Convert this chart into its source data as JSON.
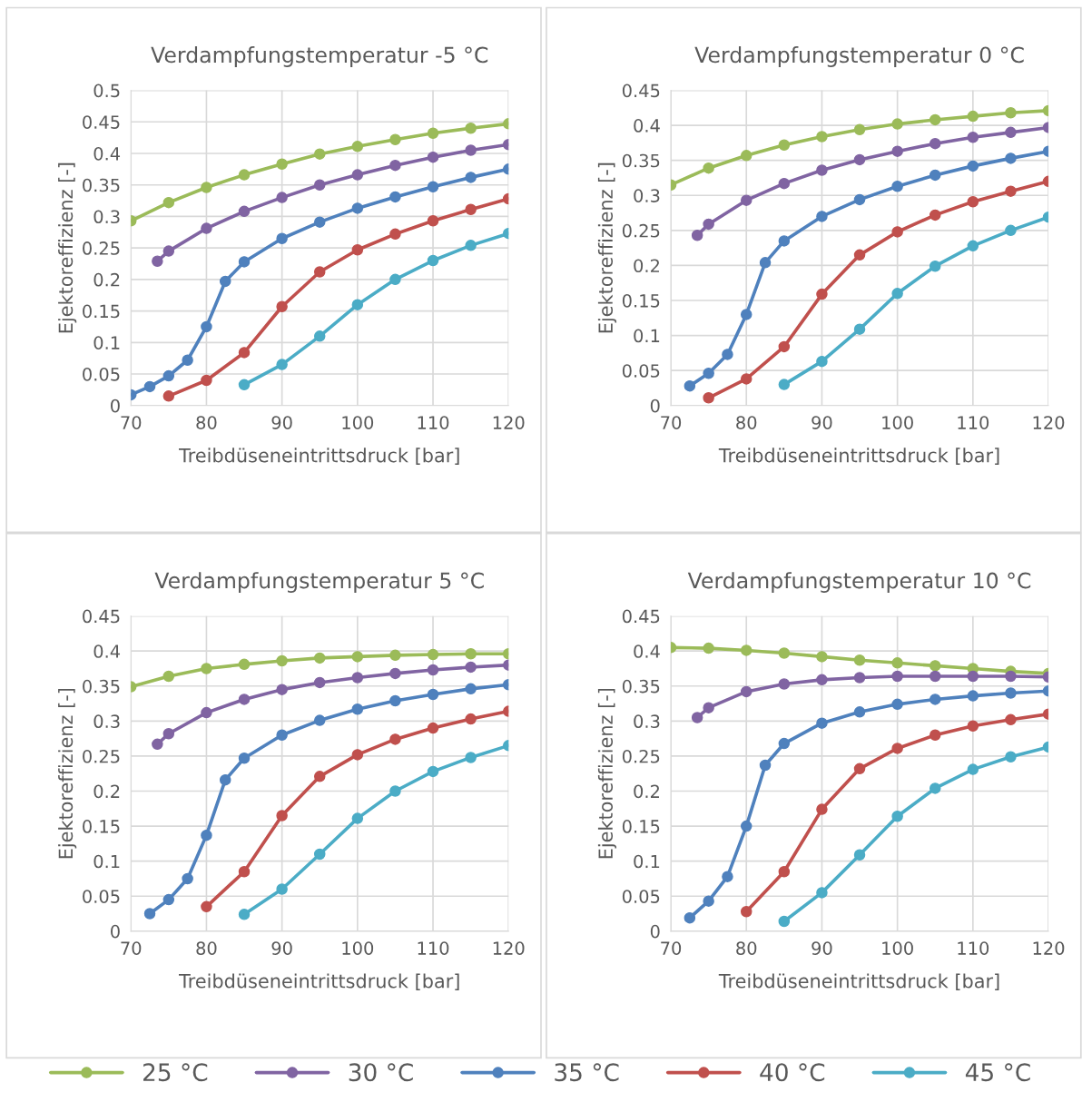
{
  "chart_data": [
    {
      "type": "line",
      "title": "Verdampfungstemperatur -5 °C",
      "xlabel": "Treibdüseneintrittsdruck [bar]",
      "ylabel": "Ejektoreffizienz [-]",
      "xlim": [
        70,
        120
      ],
      "xticks": [
        70,
        80,
        90,
        100,
        110,
        120
      ],
      "ylim": [
        0,
        0.5
      ],
      "yticks": [
        0,
        0.05,
        0.1,
        0.15,
        0.2,
        0.25,
        0.3,
        0.35,
        0.4,
        0.45,
        0.5
      ],
      "grid": true,
      "marker": "circle",
      "line_style": "solid",
      "series": [
        {
          "color": "#9bbb59",
          "x": [
            70,
            75,
            80,
            85,
            90,
            95,
            100,
            105,
            110,
            115,
            120
          ],
          "values": [
            0.293,
            0.322,
            0.346,
            0.366,
            0.383,
            0.399,
            0.411,
            0.422,
            0.432,
            0.44,
            0.447
          ]
        },
        {
          "color": "#8064a2",
          "x": [
            73.5,
            75,
            80,
            85,
            90,
            95,
            100,
            105,
            110,
            115,
            120
          ],
          "values": [
            0.229,
            0.245,
            0.281,
            0.308,
            0.33,
            0.35,
            0.366,
            0.381,
            0.394,
            0.405,
            0.414
          ]
        },
        {
          "color": "#4f81bd",
          "x": [
            70,
            72.5,
            75,
            77.5,
            80,
            82.5,
            85,
            90,
            95,
            100,
            105,
            110,
            115,
            120
          ],
          "values": [
            0.017,
            0.03,
            0.047,
            0.072,
            0.125,
            0.197,
            0.228,
            0.265,
            0.291,
            0.313,
            0.331,
            0.347,
            0.362,
            0.375
          ]
        },
        {
          "color": "#c0504d",
          "x": [
            75,
            80,
            85,
            90,
            95,
            100,
            105,
            110,
            115,
            120
          ],
          "values": [
            0.015,
            0.04,
            0.084,
            0.157,
            0.212,
            0.247,
            0.272,
            0.293,
            0.311,
            0.328
          ]
        },
        {
          "color": "#4bacc6",
          "x": [
            85,
            90,
            95,
            100,
            105,
            110,
            115,
            120
          ],
          "values": [
            0.033,
            0.065,
            0.11,
            0.16,
            0.2,
            0.23,
            0.254,
            0.273
          ]
        }
      ]
    },
    {
      "type": "line",
      "title": "Verdampfungstemperatur 0 °C",
      "xlabel": "Treibdüseneintrittsdruck [bar]",
      "ylabel": "Ejektoreffizienz [-]",
      "xlim": [
        70,
        120
      ],
      "xticks": [
        70,
        80,
        90,
        100,
        110,
        120
      ],
      "ylim": [
        0,
        0.45
      ],
      "yticks": [
        0,
        0.05,
        0.1,
        0.15,
        0.2,
        0.25,
        0.3,
        0.35,
        0.4,
        0.45
      ],
      "grid": true,
      "marker": "circle",
      "line_style": "solid",
      "series": [
        {
          "color": "#9bbb59",
          "x": [
            70,
            75,
            80,
            85,
            90,
            95,
            100,
            105,
            110,
            115,
            120
          ],
          "values": [
            0.315,
            0.339,
            0.357,
            0.372,
            0.384,
            0.394,
            0.402,
            0.408,
            0.413,
            0.418,
            0.421
          ]
        },
        {
          "color": "#8064a2",
          "x": [
            73.5,
            75,
            80,
            85,
            90,
            95,
            100,
            105,
            110,
            115,
            120
          ],
          "values": [
            0.243,
            0.259,
            0.293,
            0.317,
            0.336,
            0.351,
            0.363,
            0.374,
            0.383,
            0.39,
            0.397
          ]
        },
        {
          "color": "#4f81bd",
          "x": [
            72.5,
            75,
            77.5,
            80,
            82.5,
            85,
            90,
            95,
            100,
            105,
            110,
            115,
            120
          ],
          "values": [
            0.028,
            0.046,
            0.073,
            0.13,
            0.204,
            0.235,
            0.27,
            0.294,
            0.313,
            0.329,
            0.342,
            0.353,
            0.363
          ]
        },
        {
          "color": "#c0504d",
          "x": [
            75,
            80,
            85,
            90,
            95,
            100,
            105,
            110,
            115,
            120
          ],
          "values": [
            0.011,
            0.038,
            0.084,
            0.159,
            0.215,
            0.248,
            0.272,
            0.291,
            0.306,
            0.32
          ]
        },
        {
          "color": "#4bacc6",
          "x": [
            85,
            90,
            95,
            100,
            105,
            110,
            115,
            120
          ],
          "values": [
            0.03,
            0.063,
            0.109,
            0.16,
            0.199,
            0.228,
            0.25,
            0.269
          ]
        }
      ]
    },
    {
      "type": "line",
      "title": "Verdampfungstemperatur 5 °C",
      "xlabel": "Treibdüseneintrittsdruck [bar]",
      "ylabel": "Ejektoreffizienz [-]",
      "xlim": [
        70,
        120
      ],
      "xticks": [
        70,
        80,
        90,
        100,
        110,
        120
      ],
      "ylim": [
        0,
        0.45
      ],
      "yticks": [
        0,
        0.05,
        0.1,
        0.15,
        0.2,
        0.25,
        0.3,
        0.35,
        0.4,
        0.45
      ],
      "grid": true,
      "marker": "circle",
      "line_style": "solid",
      "series": [
        {
          "color": "#9bbb59",
          "x": [
            70,
            75,
            80,
            85,
            90,
            95,
            100,
            105,
            110,
            115,
            120
          ],
          "values": [
            0.349,
            0.364,
            0.375,
            0.381,
            0.386,
            0.39,
            0.392,
            0.394,
            0.395,
            0.396,
            0.396
          ]
        },
        {
          "color": "#8064a2",
          "x": [
            73.5,
            75,
            80,
            85,
            90,
            95,
            100,
            105,
            110,
            115,
            120
          ],
          "values": [
            0.267,
            0.282,
            0.312,
            0.331,
            0.345,
            0.355,
            0.362,
            0.368,
            0.373,
            0.377,
            0.38
          ]
        },
        {
          "color": "#4f81bd",
          "x": [
            72.5,
            75,
            77.5,
            80,
            82.5,
            85,
            90,
            95,
            100,
            105,
            110,
            115,
            120
          ],
          "values": [
            0.025,
            0.045,
            0.075,
            0.137,
            0.216,
            0.247,
            0.28,
            0.301,
            0.317,
            0.329,
            0.338,
            0.346,
            0.352
          ]
        },
        {
          "color": "#c0504d",
          "x": [
            80,
            85,
            90,
            95,
            100,
            105,
            110,
            115,
            120
          ],
          "values": [
            0.035,
            0.085,
            0.165,
            0.221,
            0.252,
            0.274,
            0.29,
            0.303,
            0.314
          ]
        },
        {
          "color": "#4bacc6",
          "x": [
            85,
            90,
            95,
            100,
            105,
            110,
            115,
            120
          ],
          "values": [
            0.024,
            0.06,
            0.11,
            0.161,
            0.2,
            0.228,
            0.248,
            0.265
          ]
        }
      ]
    },
    {
      "type": "line",
      "title": "Verdampfungstemperatur 10 °C",
      "xlabel": "Treibdüseneintrittsdruck [bar]",
      "ylabel": "Ejektoreffizienz [-]",
      "xlim": [
        70,
        120
      ],
      "xticks": [
        70,
        80,
        90,
        100,
        110,
        120
      ],
      "ylim": [
        0,
        0.45
      ],
      "yticks": [
        0,
        0.05,
        0.1,
        0.15,
        0.2,
        0.25,
        0.3,
        0.35,
        0.4,
        0.45
      ],
      "grid": true,
      "marker": "circle",
      "line_style": "solid",
      "legend": "bottom",
      "series": [
        {
          "name": "25 °C",
          "color": "#9bbb59",
          "x": [
            70,
            75,
            80,
            85,
            90,
            95,
            100,
            105,
            110,
            115,
            120
          ],
          "values": [
            0.405,
            0.404,
            0.401,
            0.397,
            0.392,
            0.387,
            0.383,
            0.379,
            0.375,
            0.371,
            0.368
          ]
        },
        {
          "name": "30 °C",
          "color": "#8064a2",
          "x": [
            73.5,
            75,
            80,
            85,
            90,
            95,
            100,
            105,
            110,
            115,
            120
          ],
          "values": [
            0.305,
            0.319,
            0.342,
            0.353,
            0.359,
            0.362,
            0.364,
            0.364,
            0.364,
            0.364,
            0.363
          ]
        },
        {
          "name": "35 °C",
          "color": "#4f81bd",
          "x": [
            72.5,
            75,
            77.5,
            80,
            82.5,
            85,
            90,
            95,
            100,
            105,
            110,
            115,
            120
          ],
          "values": [
            0.019,
            0.043,
            0.078,
            0.15,
            0.237,
            0.268,
            0.297,
            0.313,
            0.324,
            0.331,
            0.336,
            0.34,
            0.343
          ]
        },
        {
          "name": "40 °C",
          "color": "#c0504d",
          "x": [
            80,
            85,
            90,
            95,
            100,
            105,
            110,
            115,
            120
          ],
          "values": [
            0.028,
            0.085,
            0.174,
            0.232,
            0.261,
            0.28,
            0.293,
            0.302,
            0.31
          ]
        },
        {
          "name": "45 °C",
          "color": "#4bacc6",
          "x": [
            85,
            90,
            95,
            100,
            105,
            110,
            115,
            120
          ],
          "values": [
            0.014,
            0.055,
            0.109,
            0.164,
            0.204,
            0.231,
            0.249,
            0.263
          ]
        }
      ]
    }
  ]
}
